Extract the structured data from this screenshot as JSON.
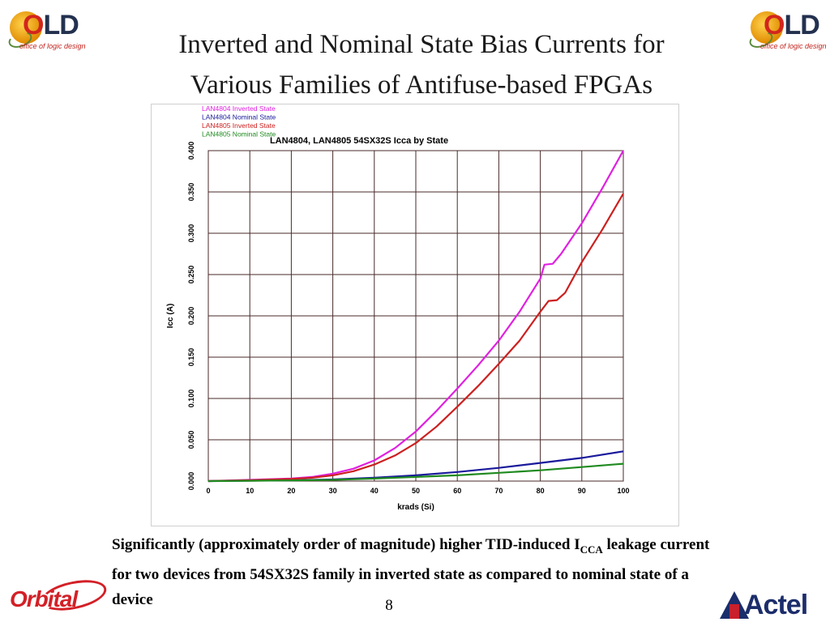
{
  "slide": {
    "title_line1": "Inverted and Nominal State Bias Currents for",
    "title_line2": "Various Families of Antifuse-based FPGAs",
    "caption_part1": "Significantly (approximately order of magnitude) higher TID-induced I",
    "caption_sub": "CCA",
    "caption_part2": " leakage current for two devices from 54SX32S family in inverted state as compared to nominal state of a device",
    "page_number": "8"
  },
  "logos": {
    "old_text_o": "O",
    "old_text_ld": "LD",
    "old_subtitle": "office of logic design",
    "orbital_text": "Orbital",
    "actel_text": "Actel"
  },
  "chart_data": {
    "type": "line",
    "title": "LAN4804, LAN4805 54SX32S Icca by State",
    "xlabel": "krads (Si)",
    "ylabel": "Icc (A)",
    "xlim": [
      0,
      100
    ],
    "ylim": [
      0,
      0.4
    ],
    "xticks": [
      0,
      10,
      20,
      30,
      40,
      50,
      60,
      70,
      80,
      90,
      100
    ],
    "xtick_labels": [
      "0",
      "10",
      "20",
      "30",
      "40",
      "50",
      "60",
      "70",
      "80",
      "90",
      "100"
    ],
    "yticks": [
      0,
      0.05,
      0.1,
      0.15,
      0.2,
      0.25,
      0.3,
      0.35,
      0.4
    ],
    "ytick_labels": [
      "0.000",
      "0.050",
      "0.100",
      "0.150",
      "0.200",
      "0.250",
      "0.300",
      "0.350",
      "0.400"
    ],
    "grid": true,
    "legend_position": "top-left outside plot",
    "series": [
      {
        "name": "LAN4804 Inverted State",
        "color": "#e020e0",
        "x": [
          0,
          10,
          20,
          25,
          30,
          35,
          40,
          45,
          50,
          55,
          60,
          65,
          70,
          75,
          80,
          81,
          83,
          85,
          90,
          95,
          100
        ],
        "y": [
          0.0,
          0.0015,
          0.003,
          0.005,
          0.009,
          0.015,
          0.025,
          0.04,
          0.06,
          0.085,
          0.112,
          0.14,
          0.17,
          0.205,
          0.245,
          0.262,
          0.263,
          0.275,
          0.312,
          0.355,
          0.4
        ]
      },
      {
        "name": "LAN4804 Nominal State",
        "color": "#1a1a9c",
        "x": [
          0,
          10,
          20,
          30,
          40,
          50,
          60,
          70,
          80,
          90,
          100
        ],
        "y": [
          0.0,
          0.0005,
          0.001,
          0.002,
          0.004,
          0.007,
          0.011,
          0.016,
          0.022,
          0.028,
          0.036
        ]
      },
      {
        "name": "LAN4805 Inverted State",
        "color": "#cc2020",
        "x": [
          0,
          10,
          20,
          25,
          30,
          35,
          40,
          45,
          50,
          55,
          60,
          65,
          70,
          75,
          80,
          82,
          84,
          86,
          90,
          95,
          100
        ],
        "y": [
          0.0,
          0.001,
          0.0025,
          0.004,
          0.007,
          0.012,
          0.02,
          0.031,
          0.046,
          0.066,
          0.09,
          0.115,
          0.142,
          0.17,
          0.205,
          0.218,
          0.219,
          0.228,
          0.265,
          0.305,
          0.348
        ]
      },
      {
        "name": "LAN4805 Nominal State",
        "color": "#1f8a1f",
        "x": [
          0,
          10,
          20,
          30,
          40,
          50,
          60,
          70,
          80,
          90,
          100
        ],
        "y": [
          0.0,
          0.0004,
          0.0008,
          0.0015,
          0.003,
          0.005,
          0.007,
          0.01,
          0.013,
          0.017,
          0.021
        ]
      }
    ]
  }
}
